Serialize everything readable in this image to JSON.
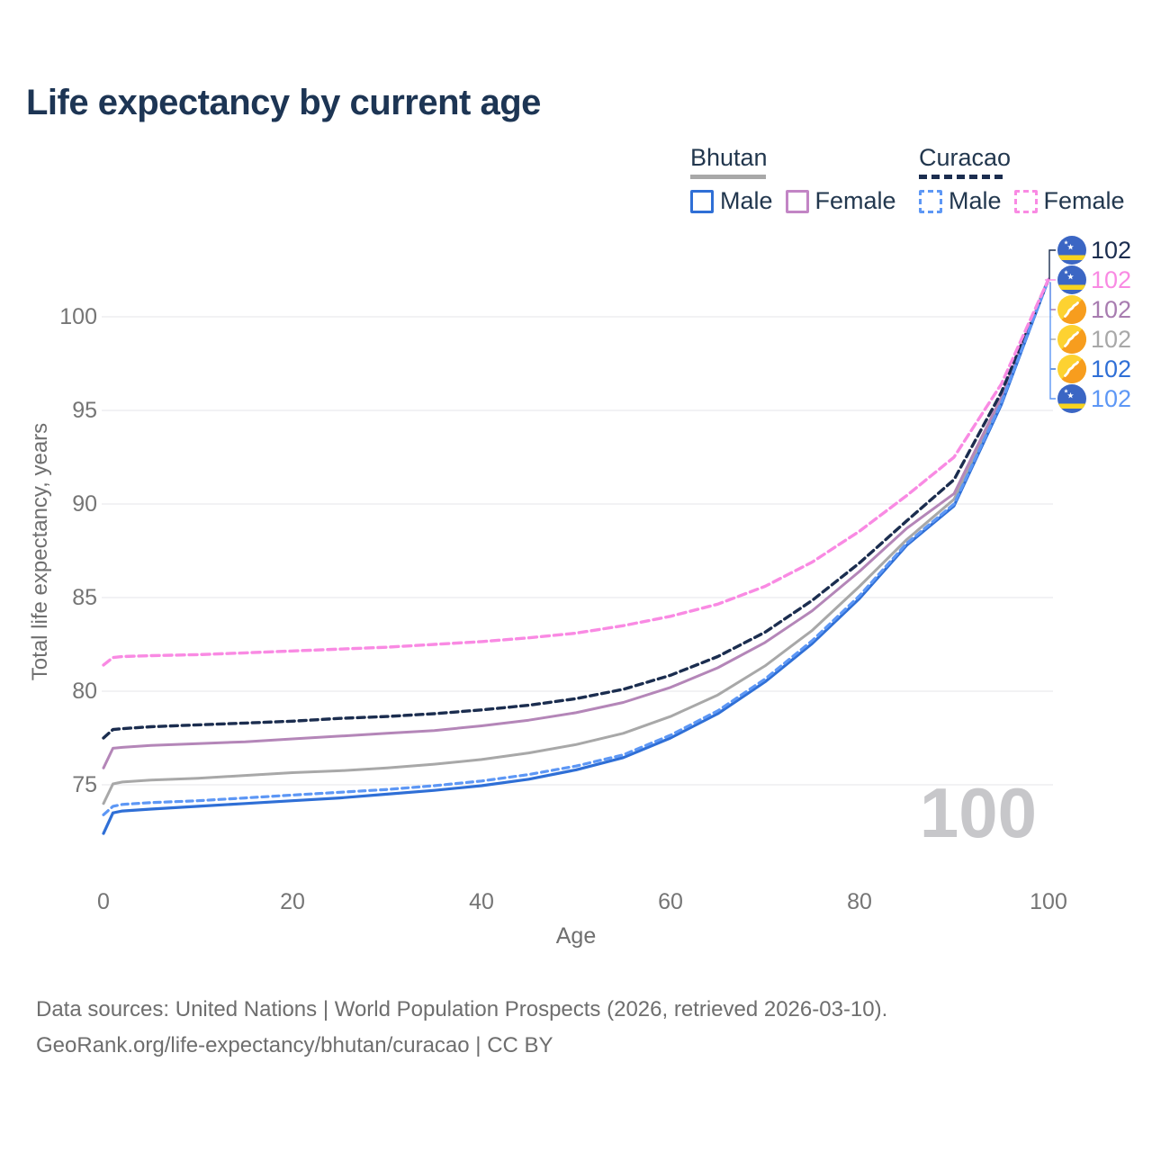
{
  "title": "Life expectancy by current age",
  "legend": {
    "groups": [
      {
        "country": "Bhutan",
        "line_style": "solid",
        "underline_color": "#a8a8a8",
        "items": [
          {
            "label": "Male",
            "color": "#2f6fd6"
          },
          {
            "label": "Female",
            "color": "#c285c5"
          }
        ]
      },
      {
        "country": "Curacao",
        "line_style": "dashed",
        "underline_color": "#1b2d4f",
        "items": [
          {
            "label": "Male",
            "color": "#5d97f5"
          },
          {
            "label": "Female",
            "color": "#f98ae3"
          }
        ]
      }
    ]
  },
  "watermark": "100",
  "right_labels": [
    {
      "value": "102",
      "flag": "curacao",
      "color": "#1b2d4f",
      "series": "Curacao — Both sexes"
    },
    {
      "value": "102",
      "flag": "curacao",
      "color": "#f98ae3",
      "series": "Curacao — Female"
    },
    {
      "value": "102",
      "flag": "bhutan",
      "color": "#a87cb0",
      "series": "Bhutan — Female"
    },
    {
      "value": "102",
      "flag": "bhutan",
      "color": "#a8a8a8",
      "series": "Bhutan — Both sexes"
    },
    {
      "value": "102",
      "flag": "bhutan",
      "color": "#2f6fd6",
      "series": "Bhutan — Male"
    },
    {
      "value": "102",
      "flag": "curacao",
      "color": "#5d97f5",
      "series": "Curacao — Male"
    }
  ],
  "footer": {
    "line1": "Data sources: United Nations | World Population Prospects (2026, retrieved 2026-03-10).",
    "line2": "GeoRank.org/life-expectancy/bhutan/curacao | CC BY"
  },
  "chart_data": {
    "type": "line",
    "title": "Life expectancy by current age",
    "xlabel": "Age",
    "ylabel": "Total life expectancy, years",
    "xticks": [
      0,
      20,
      40,
      60,
      80,
      100
    ],
    "yticks": [
      75,
      80,
      85,
      90,
      95,
      100
    ],
    "xlim": [
      0,
      100
    ],
    "ylim": [
      72,
      103
    ],
    "grid": "horizontal",
    "legend_position": "top-right",
    "x": [
      0,
      1,
      2,
      5,
      10,
      15,
      20,
      25,
      30,
      35,
      40,
      45,
      50,
      55,
      60,
      65,
      70,
      75,
      80,
      85,
      90,
      95,
      100
    ],
    "series": [
      {
        "id": "bhutan-both",
        "name": "Bhutan — Both sexes",
        "country": "Bhutan",
        "sex": "both",
        "color": "#a8a8a8",
        "dash": null,
        "width": 3,
        "values": [
          74.0,
          75.05,
          75.15,
          75.25,
          75.35,
          75.5,
          75.65,
          75.75,
          75.9,
          76.1,
          76.35,
          76.7,
          77.15,
          77.75,
          78.65,
          79.8,
          81.35,
          83.25,
          85.6,
          88.1,
          90.25,
          95.55,
          102
        ]
      },
      {
        "id": "bhutan-female",
        "name": "Bhutan — Female",
        "country": "Bhutan",
        "sex": "female",
        "color": "#b486b8",
        "dash": null,
        "width": 3,
        "values": [
          75.9,
          76.95,
          77.0,
          77.1,
          77.2,
          77.3,
          77.45,
          77.6,
          77.75,
          77.9,
          78.15,
          78.45,
          78.85,
          79.4,
          80.2,
          81.25,
          82.6,
          84.3,
          86.4,
          88.7,
          90.55,
          95.7,
          102
        ]
      },
      {
        "id": "bhutan-male",
        "name": "Bhutan — Male",
        "country": "Bhutan",
        "sex": "male",
        "color": "#2f6fd6",
        "dash": null,
        "width": 3.2,
        "values": [
          72.4,
          73.5,
          73.6,
          73.7,
          73.85,
          74.0,
          74.15,
          74.3,
          74.5,
          74.7,
          74.95,
          75.3,
          75.8,
          76.45,
          77.5,
          78.8,
          80.5,
          82.55,
          84.95,
          87.8,
          89.9,
          95.3,
          102
        ]
      },
      {
        "id": "curacao-both",
        "name": "Curacao — Both sexes",
        "country": "Curacao",
        "sex": "both",
        "color": "#1b2d4f",
        "dash": "8 5",
        "width": 3.4,
        "values": [
          77.5,
          77.95,
          78.0,
          78.1,
          78.2,
          78.3,
          78.4,
          78.55,
          78.65,
          78.8,
          79.0,
          79.25,
          79.6,
          80.1,
          80.85,
          81.85,
          83.15,
          84.85,
          86.85,
          89.1,
          91.3,
          95.95,
          102
        ]
      },
      {
        "id": "curacao-male",
        "name": "Curacao — Male",
        "country": "Curacao",
        "sex": "male",
        "color": "#5d97f5",
        "dash": "7 5",
        "width": 3.2,
        "values": [
          73.4,
          73.85,
          73.95,
          74.05,
          74.15,
          74.3,
          74.45,
          74.6,
          74.75,
          74.95,
          75.2,
          75.55,
          76.0,
          76.6,
          77.65,
          78.95,
          80.65,
          82.7,
          85.1,
          87.9,
          90.0,
          95.4,
          102
        ]
      },
      {
        "id": "curacao-female",
        "name": "Curacao — Female",
        "country": "Curacao",
        "sex": "female",
        "color": "#f98ae3",
        "dash": "9 5",
        "width": 3.4,
        "values": [
          81.4,
          81.8,
          81.85,
          81.9,
          81.95,
          82.05,
          82.15,
          82.25,
          82.35,
          82.5,
          82.65,
          82.85,
          83.1,
          83.5,
          84.0,
          84.65,
          85.6,
          86.9,
          88.55,
          90.45,
          92.5,
          96.4,
          102
        ]
      }
    ]
  }
}
